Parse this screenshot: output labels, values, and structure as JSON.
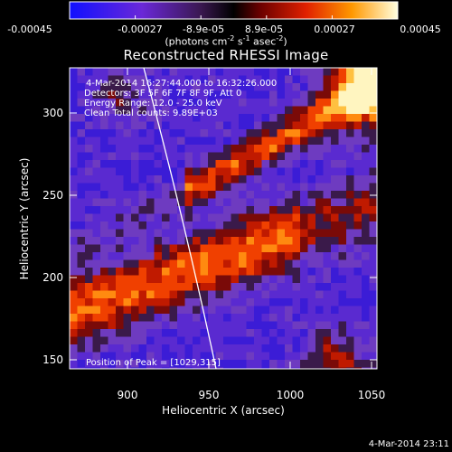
{
  "colorbar": {
    "ticks": [
      "-0.00045",
      "-0.00027",
      "-8.9e-05",
      "8.9e-05",
      "0.00027",
      "0.00045"
    ],
    "units_main": "(photons cm",
    "units_sup1": "-2",
    "units_mid": " s",
    "units_sup2": "-1",
    "units_end": " asec",
    "units_sup3": "-2",
    "units_close": ")"
  },
  "title": "Reconstructed RHESSI Image",
  "annotations": {
    "time_range": "4-Mar-2014 16:27:44.000 to 16:32:26.000",
    "detectors": "Detectors: 3F 5F 6F 7F 8F 9F, Att 0",
    "energy": "Energy Range: 12.0 - 25.0 keV",
    "clean": "Clean     Total counts: 9.89E+03",
    "peak": "Position of Peak = [1029,315]"
  },
  "xaxis": {
    "label": "Heliocentric X (arcsec)",
    "ticks": [
      "900",
      "950",
      "1000",
      "1050"
    ]
  },
  "yaxis": {
    "label": "Heliocentric Y (arcsec)",
    "ticks": [
      "150",
      "200",
      "250",
      "300"
    ]
  },
  "footer": {
    "date": "4-Mar-2014 23:11"
  },
  "colors": {
    "frame": "#ffffff",
    "limb": "#ffffff",
    "background": "#000000"
  }
}
